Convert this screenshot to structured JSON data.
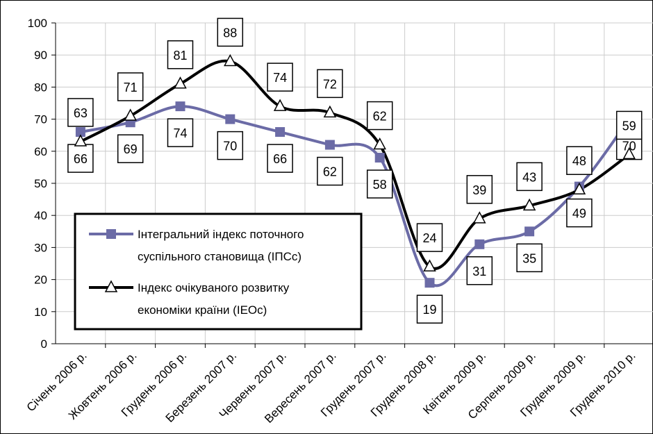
{
  "chart_data": {
    "type": "line",
    "categories": [
      "Січень 2006 р.",
      "Жовтень 2006 р.",
      "Грудень 2006 р.",
      "Березень 2007 р.",
      "Червень 2007 р.",
      "Вересень 2007 р.",
      "Грудень 2007 р.",
      "Грудень 2008 р.",
      "Квітень 2009 р.",
      "Серпень 2009 р.",
      "Грудень 2009 р.",
      "Грудень 2010 р."
    ],
    "series": [
      {
        "name": "Інтегральний індекс поточного суспільного становища (ІПСс)",
        "color": "#6b6ba6",
        "marker": "square",
        "values": [
          66,
          69,
          74,
          70,
          66,
          62,
          58,
          19,
          31,
          35,
          49,
          70
        ]
      },
      {
        "name": "Індекс очікуваного розвитку економіки країни (ІЕОс)",
        "color": "#000000",
        "marker": "triangle",
        "values": [
          63,
          71,
          81,
          88,
          74,
          72,
          62,
          24,
          39,
          43,
          48,
          59
        ]
      }
    ],
    "ylim": [
      0,
      100
    ],
    "yticks": [
      0,
      10,
      20,
      30,
      40,
      50,
      60,
      70,
      80,
      90,
      100
    ],
    "grid": true,
    "smooth": true,
    "legend": "left"
  }
}
